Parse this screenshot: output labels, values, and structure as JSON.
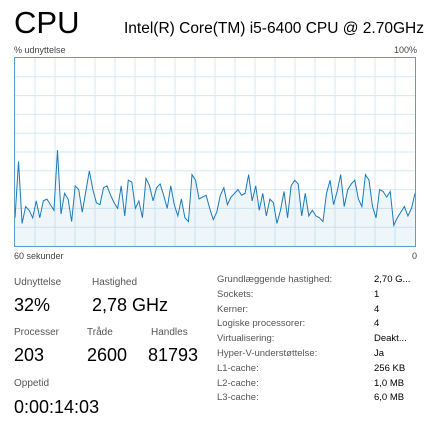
{
  "header": {
    "title": "CPU",
    "cpu_model": "Intel(R) Core(TM) i5-6400 CPU @ 2.70GHz"
  },
  "graph": {
    "y_axis_label": "% udnyttelse",
    "max_label": "100%",
    "time_label": "60 sekunder",
    "min_label": "0",
    "line_color": "#1c7ab8",
    "grid_color": "#d6e8f4",
    "border_color": "#5e9cc4",
    "values": [
      15,
      45,
      12,
      21,
      19,
      15,
      24,
      15,
      24,
      25,
      22,
      19,
      51,
      17,
      28,
      25,
      13,
      32,
      30,
      18,
      29,
      40,
      30,
      23,
      22,
      31,
      32,
      27,
      23,
      20,
      32,
      16,
      35,
      34,
      20,
      24,
      15,
      36,
      32,
      24,
      31,
      33,
      27,
      20,
      32,
      22,
      16,
      25,
      15,
      13,
      38,
      35,
      25,
      26,
      27,
      20,
      14,
      18,
      27,
      31,
      22,
      26,
      28,
      30,
      27,
      28,
      38,
      24,
      32,
      19,
      28,
      16,
      25,
      23,
      12,
      19,
      29,
      15,
      32,
      35,
      33,
      16,
      28,
      16,
      19,
      16,
      15,
      13,
      28,
      35,
      22,
      29,
      38,
      21,
      30,
      33,
      35,
      25,
      21,
      38,
      35,
      21,
      15,
      30,
      29,
      26,
      29,
      11,
      15,
      18,
      21,
      16,
      20,
      28
    ]
  },
  "stats": {
    "utilization_label": "Udnyttelse",
    "utilization_value": "32%",
    "speed_label": "Hastighed",
    "speed_value": "2,78 GHz",
    "processes_label": "Processer",
    "processes_value": "203",
    "threads_label": "Tråde",
    "threads_value": "2600",
    "handles_label": "Handles",
    "handles_value": "81793",
    "uptime_label": "Oppetid",
    "uptime_value": "0:00:14:03"
  },
  "details": [
    {
      "key": "Grundlæggende hastighed:",
      "value": "2,70 G..."
    },
    {
      "key": "Sockets:",
      "value": "1"
    },
    {
      "key": "Kerner:",
      "value": "4"
    },
    {
      "key": "Logiske processorer:",
      "value": "4"
    },
    {
      "key": "Virtualisering:",
      "value": "Deakt..."
    },
    {
      "key": "Hyper-V-understøttelse:",
      "value": "Ja"
    },
    {
      "key": "L1-cache:",
      "value": "256 KB"
    },
    {
      "key": "L2-cache:",
      "value": "1,0 MB"
    },
    {
      "key": "L3-cache:",
      "value": "6,0 MB"
    }
  ]
}
